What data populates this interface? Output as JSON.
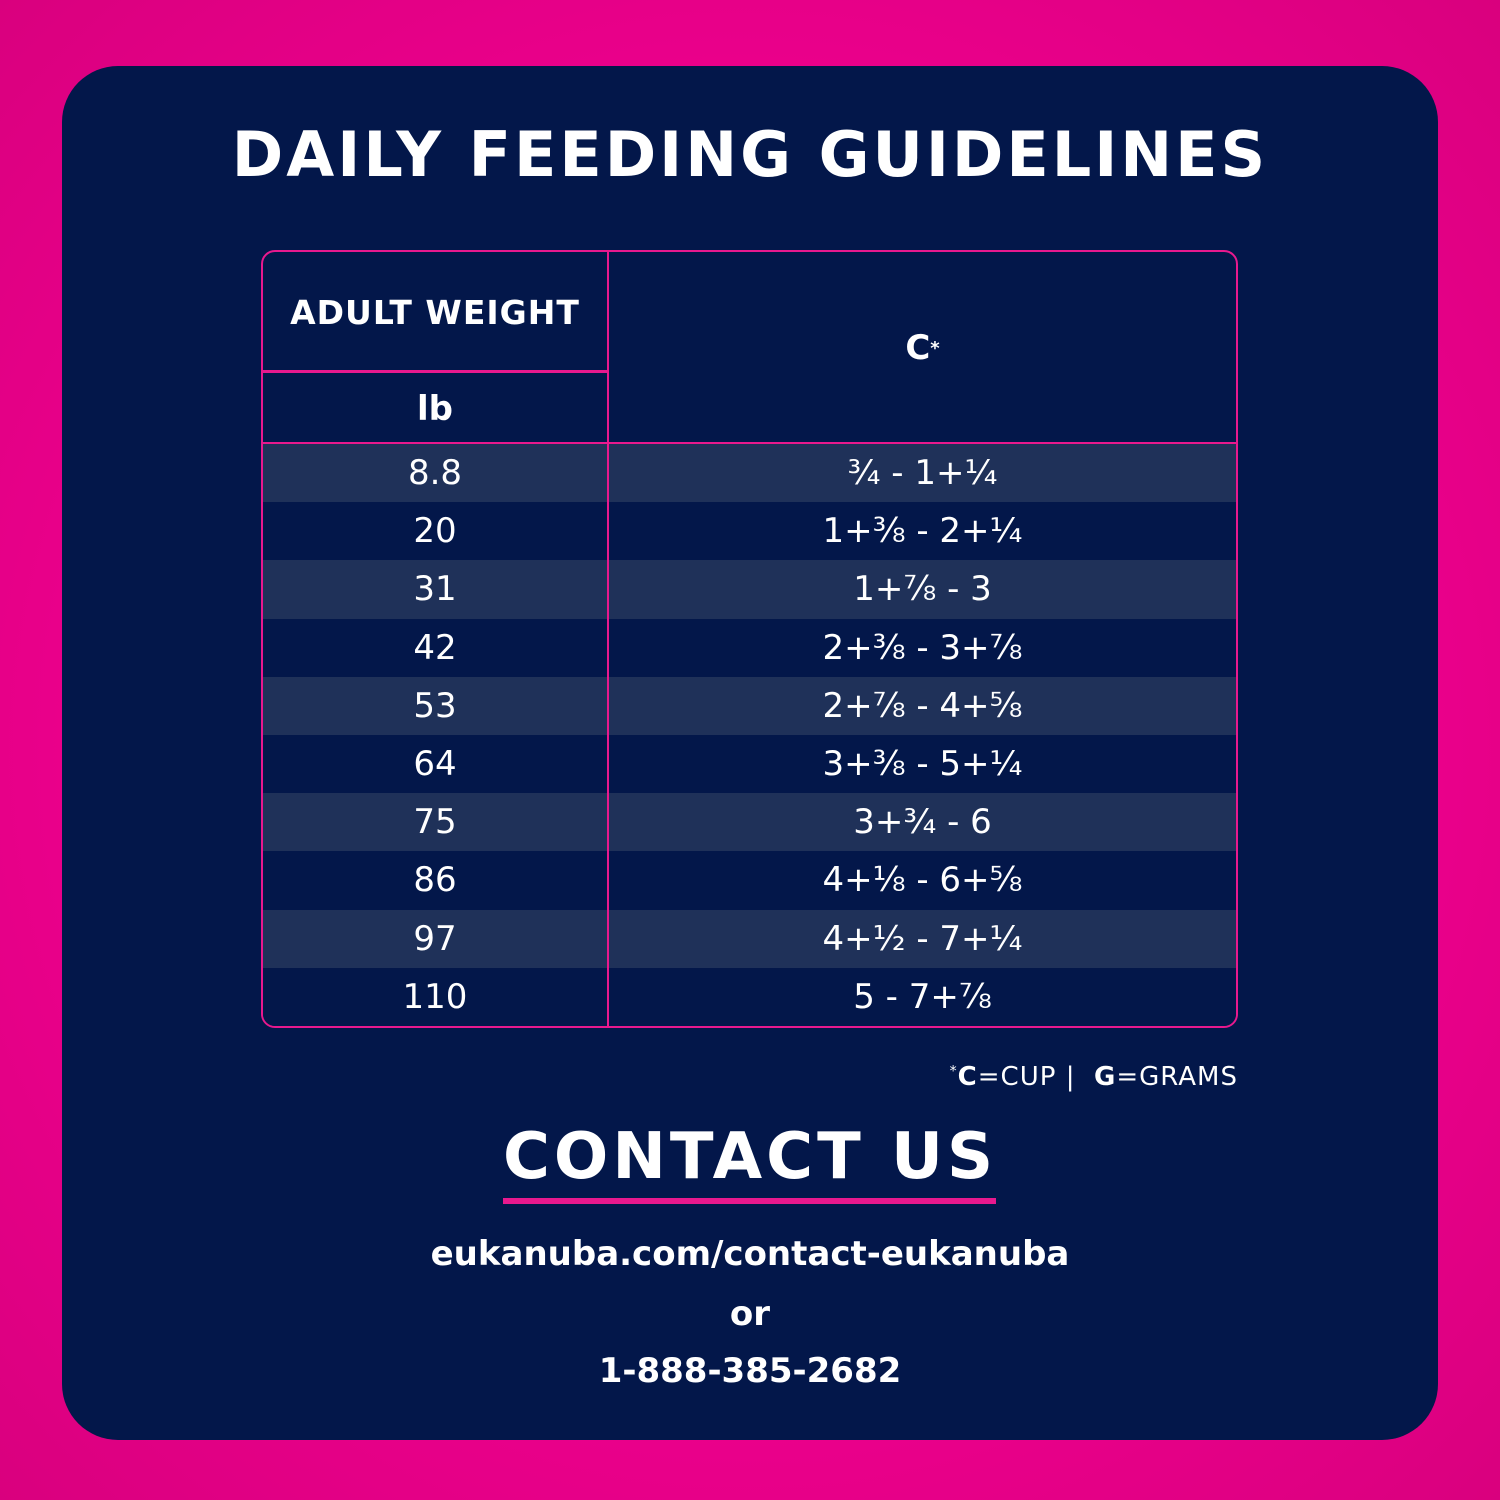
{
  "header": {
    "title": "DAILY FEEDING GUIDELINES"
  },
  "table": {
    "weight_header": "ADULT WEIGHT",
    "unit_header": "lb",
    "cup_header": "C",
    "cup_marker": "*",
    "rows": [
      [
        "8.8",
        "¾ - 1+¼"
      ],
      [
        "20",
        "1+⅜ - 2+¼"
      ],
      [
        "31",
        "1+⅞ - 3"
      ],
      [
        "42",
        "2+⅜ - 3+⅞"
      ],
      [
        "53",
        "2+⅞ - 4+⅝"
      ],
      [
        "64",
        "3+⅜ - 5+¼"
      ],
      [
        "75",
        "3+¾ - 6"
      ],
      [
        "86",
        "4+⅛ - 6+⅝"
      ],
      [
        "97",
        "4+½ - 7+¼"
      ],
      [
        "110",
        "5 - 7+⅞"
      ]
    ]
  },
  "footnote": {
    "marker": "*",
    "c": "C",
    "cup": "=CUP",
    "separator": "|",
    "g": "G",
    "grams": "=GRAMS"
  },
  "contact": {
    "title": "CONTACT US",
    "url": "eukanuba.com/contact-eukanuba",
    "or": "or",
    "phone": "1-888-385-2682"
  }
}
